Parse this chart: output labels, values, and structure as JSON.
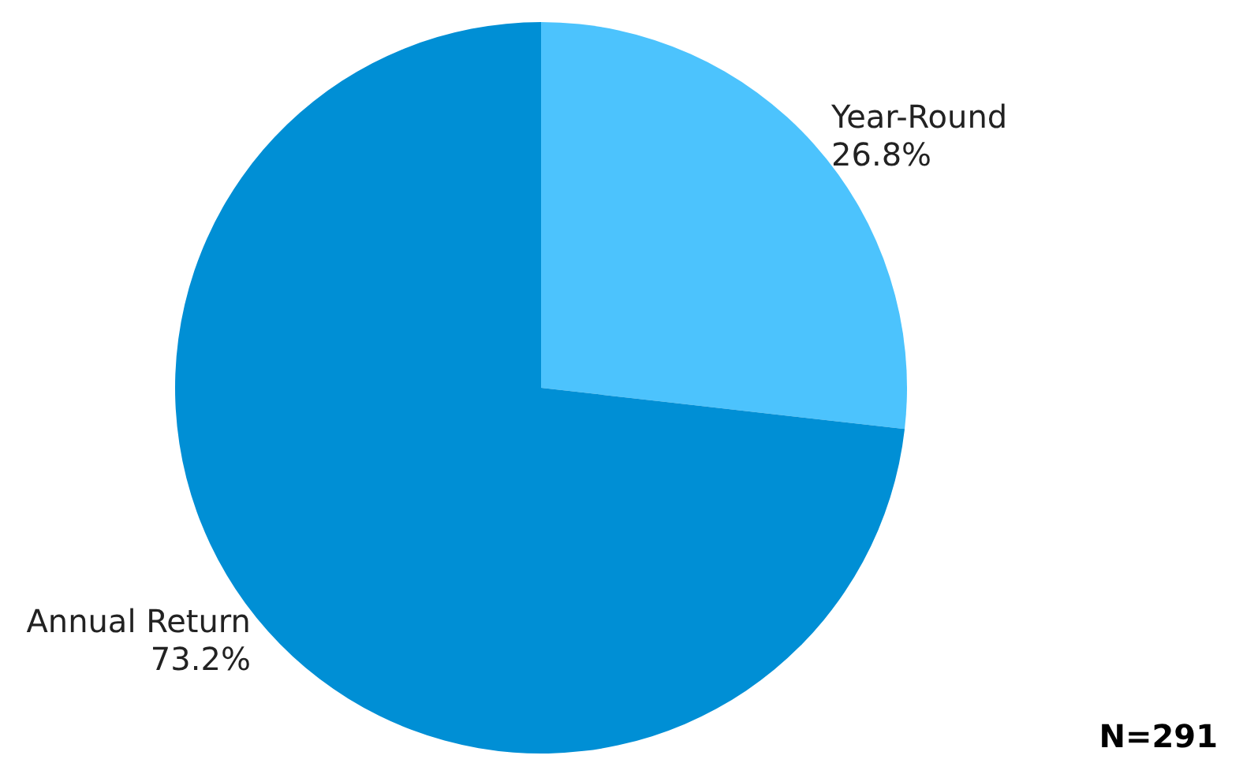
{
  "chart_data": {
    "type": "pie",
    "categories": [
      "Year-Round",
      "Annual Return"
    ],
    "values": [
      26.8,
      73.2
    ],
    "colors": [
      "#4cc3fd",
      "#008fd5"
    ],
    "value_labels": [
      "26.8%",
      "73.2%"
    ],
    "legend": false,
    "annotations": [
      "N=291"
    ]
  }
}
